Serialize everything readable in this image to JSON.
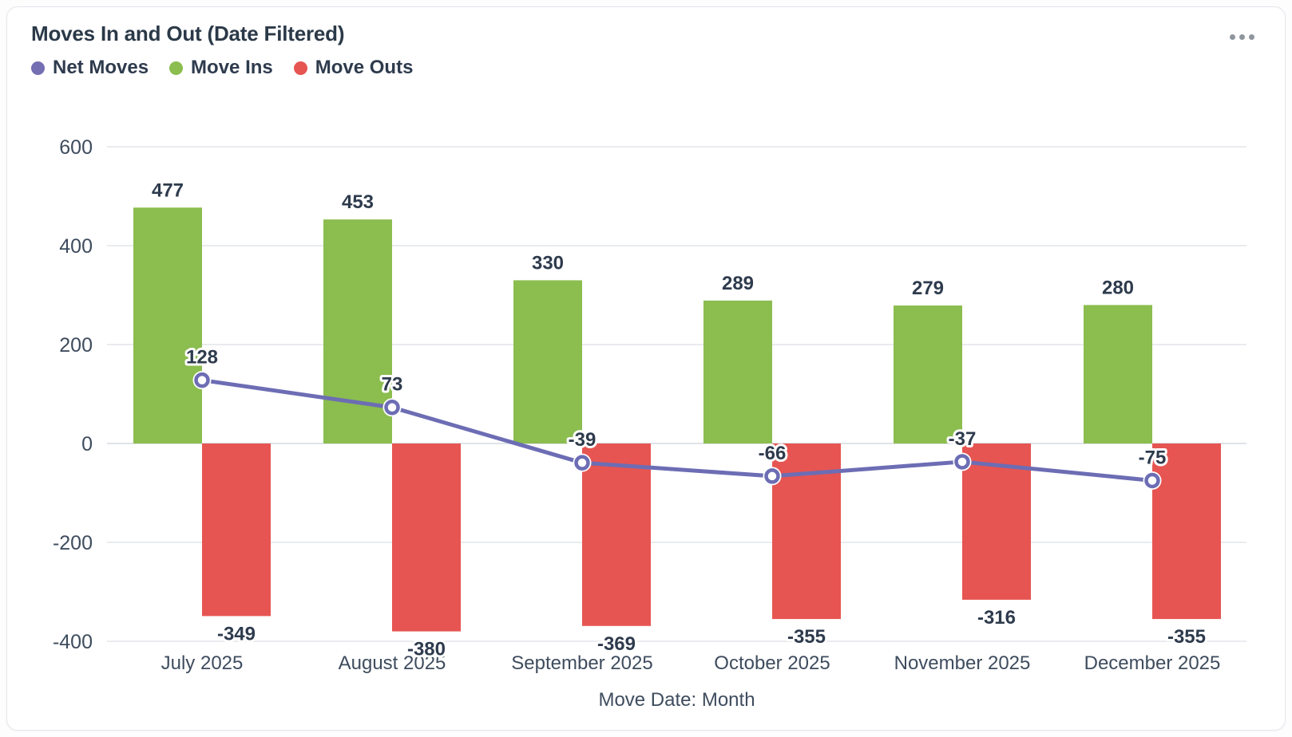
{
  "card": {
    "title": "Moves In and Out (Date Filtered)",
    "menu_icon": "ellipsis-horizontal-icon"
  },
  "legend": {
    "position": "top-left",
    "items": [
      {
        "label": "Net Moves",
        "color": "#736fb2",
        "marker": "circle"
      },
      {
        "label": "Move Ins",
        "color": "#8bbd4f",
        "marker": "circle"
      },
      {
        "label": "Move Outs",
        "color": "#e65552",
        "marker": "circle"
      }
    ]
  },
  "chart_data": {
    "type": "combo",
    "categories": [
      "July 2025",
      "August 2025",
      "September 2025",
      "October 2025",
      "November 2025",
      "December 2025"
    ],
    "series": [
      {
        "name": "Move Ins",
        "type": "bar",
        "color": "#8bbd4f",
        "values": [
          477,
          453,
          330,
          289,
          279,
          280
        ]
      },
      {
        "name": "Move Outs",
        "type": "bar",
        "color": "#e65552",
        "values": [
          -349,
          -380,
          -369,
          -355,
          -316,
          -355
        ]
      },
      {
        "name": "Net Moves",
        "type": "line",
        "color": "#6c6db4",
        "values": [
          128,
          73,
          -39,
          -66,
          -37,
          -75
        ]
      }
    ],
    "title": "Moves In and Out (Date Filtered)",
    "xlabel": "Move Date: Month",
    "ylabel": "",
    "ylim": [
      -400,
      600
    ],
    "yticks": [
      600,
      400,
      200,
      0,
      -200,
      -400
    ],
    "grid": "horizontal",
    "legend_position": "top-left",
    "value_labels": true
  },
  "colors": {
    "title_text": "#2b3948",
    "bold_label_text": "#2e3b4d",
    "axis_text": "#3e4c5e",
    "gridline": "#e9ebee",
    "zero_line": "#dfe2e6",
    "card_border": "#e3e6ea",
    "menu_dots": "#8e959d",
    "line_marker_fill": "#ffffff"
  }
}
